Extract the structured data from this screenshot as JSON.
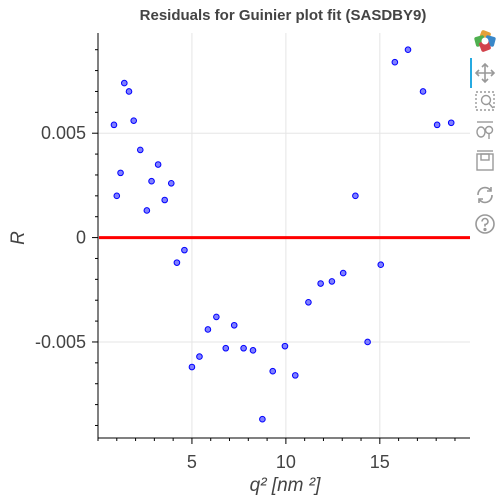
{
  "chart_data": {
    "type": "scatter",
    "title": "Residuals for Guinier plot fit (SASDBY9)",
    "xlabel": "q² [nm ²]",
    "ylabel": "R",
    "xlim": [
      0.0,
      19.8
    ],
    "ylim": [
      -0.0096,
      0.0098
    ],
    "xticks": [
      5,
      10,
      15
    ],
    "xtick_labels": [
      "5",
      "10",
      "15"
    ],
    "yticks": [
      -0.005,
      0,
      0.005
    ],
    "ytick_labels": [
      "-0.005",
      "0",
      "0.005"
    ],
    "grid": true,
    "reference_line": {
      "y": 0,
      "color": "#ff0000"
    },
    "point_color": "#0000ff",
    "point_fill": "#8080ff",
    "series": [
      {
        "x": [
          0.85,
          1.0,
          1.2,
          1.4,
          1.65,
          1.9,
          2.25,
          2.6,
          2.85,
          3.2,
          3.55,
          3.9,
          4.2,
          4.6,
          5.0,
          5.4,
          5.85,
          6.3,
          6.8,
          7.25,
          7.75,
          8.25,
          8.75,
          9.3,
          9.95,
          10.5,
          11.2,
          11.85,
          12.45,
          13.05,
          13.7,
          14.35,
          15.05,
          15.8,
          16.5,
          17.3,
          18.05,
          18.8
        ],
        "y": [
          0.0054,
          0.002,
          0.0031,
          0.0074,
          0.007,
          0.0056,
          0.0042,
          0.0013,
          0.0027,
          0.0035,
          0.0018,
          0.0026,
          -0.0012,
          -0.0006,
          -0.0062,
          -0.0057,
          -0.0044,
          -0.0038,
          -0.0053,
          -0.0042,
          -0.0053,
          -0.0054,
          -0.0087,
          -0.0064,
          -0.0052,
          -0.0066,
          -0.0031,
          -0.0022,
          -0.0021,
          -0.0017,
          0.002,
          -0.005,
          -0.0013,
          0.0084,
          0.009,
          0.007,
          0.0054,
          0.0055
        ]
      }
    ]
  },
  "toolbar": [
    {
      "name": "bokeh-logo-icon",
      "interactable": false
    },
    {
      "name": "pan-tool-icon",
      "interactable": true,
      "active": true
    },
    {
      "name": "box-zoom-tool-icon",
      "interactable": true
    },
    {
      "name": "wheel-zoom-tool-icon",
      "interactable": true
    },
    {
      "name": "save-tool-icon",
      "interactable": true
    },
    {
      "name": "reset-tool-icon",
      "interactable": true
    },
    {
      "name": "help-tool-icon",
      "interactable": true
    }
  ]
}
